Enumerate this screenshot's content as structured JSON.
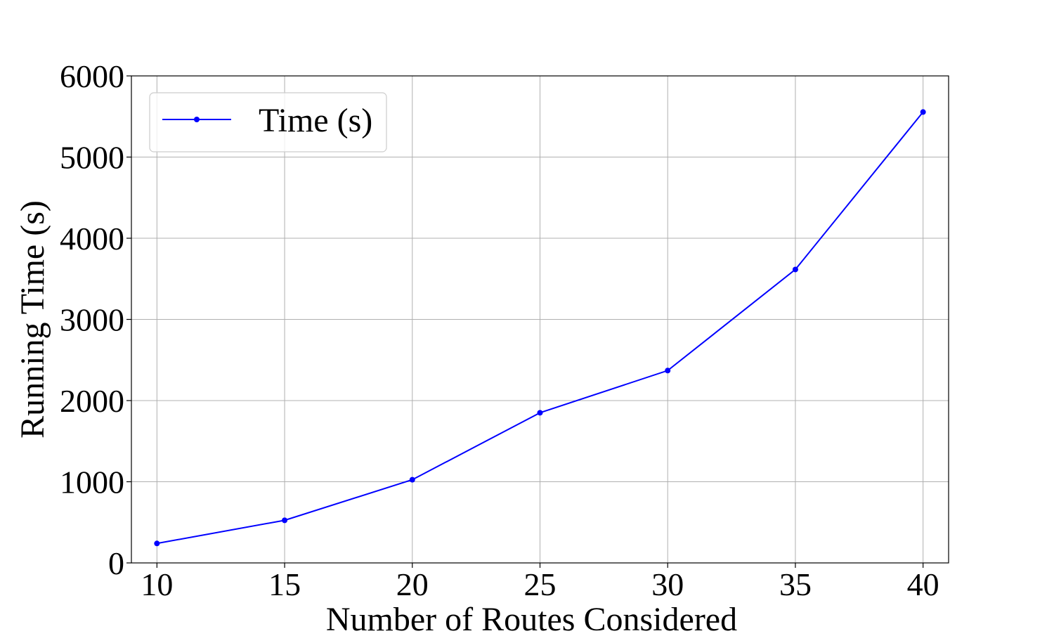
{
  "chart_data": {
    "type": "line",
    "title": "",
    "xlabel": "Number of Routes Considered",
    "ylabel": "Running Time (s)",
    "x": [
      10,
      15,
      20,
      25,
      30,
      35,
      40
    ],
    "x_ticks": [
      10,
      15,
      20,
      25,
      30,
      35,
      40
    ],
    "y_ticks": [
      0,
      1000,
      2000,
      3000,
      4000,
      5000,
      6000
    ],
    "xlim": [
      9,
      41
    ],
    "ylim": [
      0,
      6000
    ],
    "grid": true,
    "legend_position": "upper-left",
    "series": [
      {
        "name": "Time (s)",
        "color": "#0000ff",
        "marker": "circle",
        "values": [
          240,
          525,
          1025,
          1850,
          2370,
          3615,
          5555
        ]
      }
    ]
  }
}
